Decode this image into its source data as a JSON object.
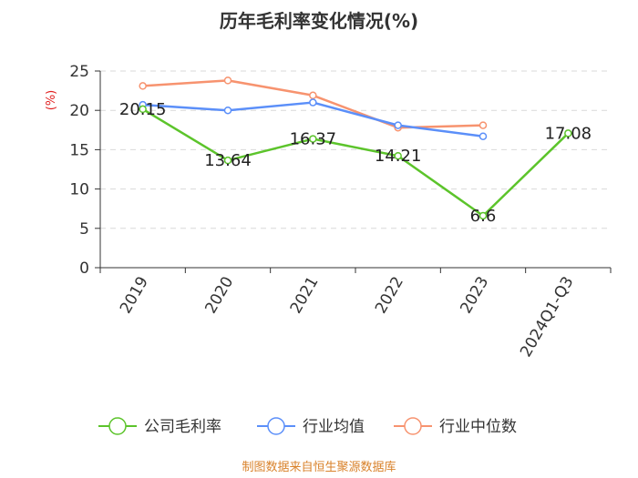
{
  "chart_data": {
    "type": "line",
    "title": "历年毛利率变化情况(%)",
    "ylabel": "(%)",
    "categories": [
      "2019",
      "2020",
      "2021",
      "2022",
      "2023",
      "2024Q1-Q3"
    ],
    "ylim": [
      0,
      25
    ],
    "yticks": [
      0,
      5,
      10,
      15,
      20,
      25
    ],
    "grid": true,
    "legend_position": "bottom",
    "series": [
      {
        "name": "公司毛利率",
        "color": "#5cc42b",
        "values": [
          20.15,
          13.64,
          16.37,
          14.21,
          6.6,
          17.08
        ],
        "labels": [
          "20.15",
          "13.64",
          "16.37",
          "14.21",
          "6.6",
          "17.08"
        ]
      },
      {
        "name": "行业均值",
        "color": "#5b8ff9",
        "values": [
          20.7,
          20.0,
          21.0,
          18.1,
          16.7,
          null
        ]
      },
      {
        "name": "行业中位数",
        "color": "#f7936f",
        "values": [
          23.1,
          23.8,
          21.9,
          17.8,
          18.1,
          null
        ]
      }
    ]
  },
  "source": "制图数据来自恒生聚源数据库"
}
